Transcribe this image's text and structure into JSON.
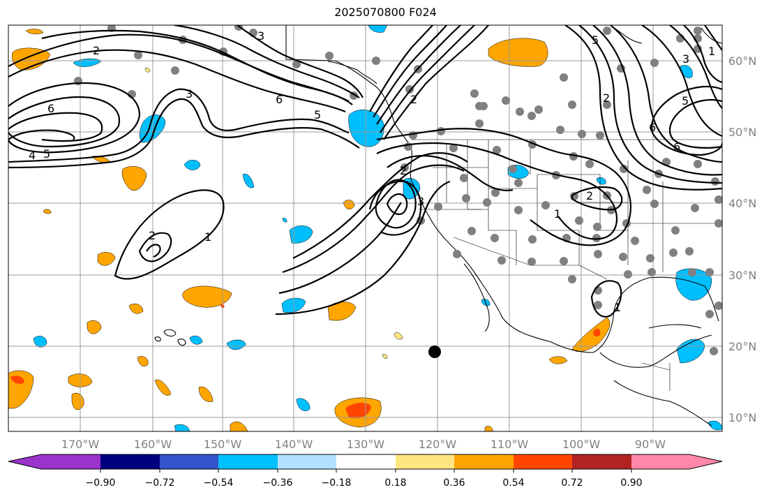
{
  "title": "2025070800 F024",
  "lon_labels": [
    "170°W",
    "160°W",
    "150°W",
    "140°W",
    "130°W",
    "120°W",
    "110°W",
    "100°W",
    "90°W"
  ],
  "lat_labels": [
    "60°N",
    "50°N",
    "40°N",
    "30°N",
    "20°N",
    "10°N"
  ],
  "colorbar": {
    "ticks": [
      "−0.90",
      "−0.72",
      "−0.54",
      "−0.36",
      "−0.18",
      "0.18",
      "0.36",
      "0.54",
      "0.72",
      "0.90"
    ],
    "colors": [
      "#9933cc",
      "#000080",
      "#3355cc",
      "#00bfff",
      "#b0e2ff",
      "#ffffff",
      "#ffe680",
      "#ffa500",
      "#ff4500",
      "#b22222",
      "#ff88aa"
    ]
  },
  "contour_labels": [
    "2",
    "6",
    "4",
    "5",
    "3",
    "6",
    "5",
    "2",
    "3",
    "5",
    "6",
    "2",
    "2",
    "3",
    "1",
    "2",
    "1",
    "1",
    "2",
    "3",
    "5",
    "6",
    "1"
  ],
  "colors": {
    "station_dot": "#808080",
    "marker": "#000000",
    "grid": "#9a9a9a"
  }
}
